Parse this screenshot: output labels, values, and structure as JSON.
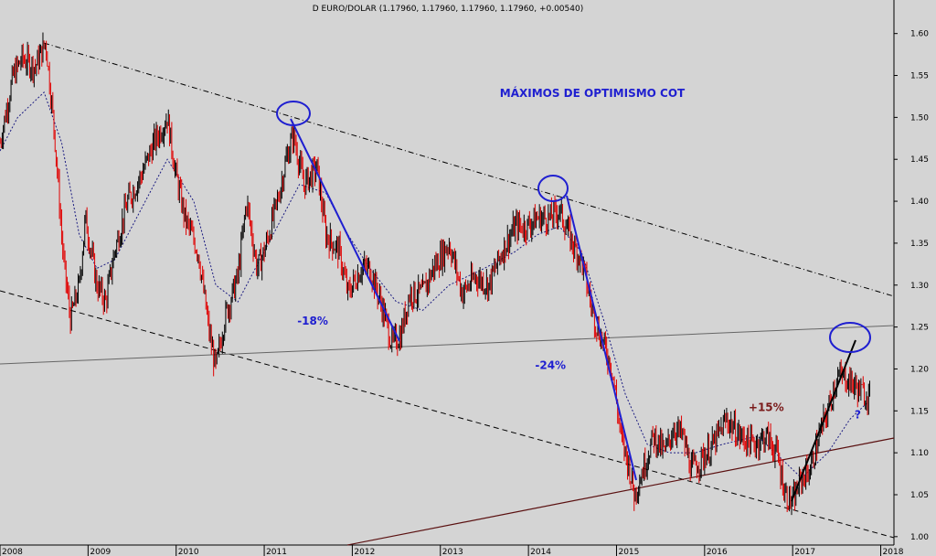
{
  "header": {
    "title": "D EURO/DOLAR (1.17960, 1.17960, 1.17960, 1.17960, +0.00540)"
  },
  "chart_data": {
    "type": "bar",
    "title": "MÁXIMOS DE OPTIMISMO COT",
    "ylim": [
      0.99,
      1.64
    ],
    "y_ticks": [
      "1.60",
      "1.55",
      "1.50",
      "1.45",
      "1.40",
      "1.35",
      "1.30",
      "1.25",
      "1.20",
      "1.15",
      "1.10",
      "1.05",
      "1.00"
    ],
    "x_range": [
      2008.0,
      2018.15
    ],
    "x_ticks": [
      {
        "label": "2008",
        "x": 2008.0
      },
      {
        "label": "2009",
        "x": 2009.0
      },
      {
        "label": "2010",
        "x": 2010.0
      },
      {
        "label": "2011",
        "x": 2011.0
      },
      {
        "label": "2012",
        "x": 2012.0
      },
      {
        "label": "2013",
        "x": 2013.0
      },
      {
        "label": "2014",
        "x": 2014.0
      },
      {
        "label": "2015",
        "x": 2015.0
      },
      {
        "label": "2016",
        "x": 2016.0
      },
      {
        "label": "2017",
        "x": 2017.0
      },
      {
        "label": "2018",
        "x": 2018.0
      }
    ],
    "price_path": [
      [
        2008.0,
        1.47
      ],
      [
        2008.15,
        1.55
      ],
      [
        2008.25,
        1.57
      ],
      [
        2008.4,
        1.56
      ],
      [
        2008.52,
        1.59
      ],
      [
        2008.62,
        1.48
      ],
      [
        2008.72,
        1.33
      ],
      [
        2008.8,
        1.26
      ],
      [
        2008.9,
        1.3
      ],
      [
        2008.97,
        1.38
      ],
      [
        2009.1,
        1.3
      ],
      [
        2009.2,
        1.28
      ],
      [
        2009.3,
        1.34
      ],
      [
        2009.45,
        1.4
      ],
      [
        2009.6,
        1.43
      ],
      [
        2009.75,
        1.47
      ],
      [
        2009.9,
        1.5
      ],
      [
        2010.0,
        1.43
      ],
      [
        2010.1,
        1.38
      ],
      [
        2010.25,
        1.34
      ],
      [
        2010.38,
        1.24
      ],
      [
        2010.45,
        1.2
      ],
      [
        2010.55,
        1.26
      ],
      [
        2010.7,
        1.31
      ],
      [
        2010.8,
        1.4
      ],
      [
        2010.92,
        1.32
      ],
      [
        2011.0,
        1.34
      ],
      [
        2011.15,
        1.4
      ],
      [
        2011.25,
        1.45
      ],
      [
        2011.33,
        1.48
      ],
      [
        2011.45,
        1.42
      ],
      [
        2011.6,
        1.44
      ],
      [
        2011.7,
        1.36
      ],
      [
        2011.85,
        1.34
      ],
      [
        2011.95,
        1.29
      ],
      [
        2012.1,
        1.32
      ],
      [
        2012.2,
        1.32
      ],
      [
        2012.35,
        1.27
      ],
      [
        2012.45,
        1.23
      ],
      [
        2012.55,
        1.24
      ],
      [
        2012.65,
        1.29
      ],
      [
        2012.8,
        1.29
      ],
      [
        2012.92,
        1.32
      ],
      [
        2013.1,
        1.35
      ],
      [
        2013.25,
        1.29
      ],
      [
        2013.4,
        1.31
      ],
      [
        2013.55,
        1.3
      ],
      [
        2013.7,
        1.34
      ],
      [
        2013.85,
        1.37
      ],
      [
        2013.98,
        1.37
      ],
      [
        2014.1,
        1.38
      ],
      [
        2014.25,
        1.38
      ],
      [
        2014.35,
        1.39
      ],
      [
        2014.5,
        1.35
      ],
      [
        2014.6,
        1.33
      ],
      [
        2014.75,
        1.26
      ],
      [
        2014.85,
        1.23
      ],
      [
        2014.95,
        1.2
      ],
      [
        2015.05,
        1.12
      ],
      [
        2015.15,
        1.08
      ],
      [
        2015.2,
        1.05
      ],
      [
        2015.3,
        1.08
      ],
      [
        2015.42,
        1.12
      ],
      [
        2015.55,
        1.1
      ],
      [
        2015.65,
        1.13
      ],
      [
        2015.75,
        1.12
      ],
      [
        2015.85,
        1.08
      ],
      [
        2015.95,
        1.09
      ],
      [
        2016.1,
        1.11
      ],
      [
        2016.25,
        1.14
      ],
      [
        2016.4,
        1.12
      ],
      [
        2016.55,
        1.11
      ],
      [
        2016.7,
        1.12
      ],
      [
        2016.82,
        1.1
      ],
      [
        2016.92,
        1.05
      ],
      [
        2017.0,
        1.04
      ],
      [
        2017.1,
        1.07
      ],
      [
        2017.2,
        1.08
      ],
      [
        2017.3,
        1.12
      ],
      [
        2017.4,
        1.15
      ],
      [
        2017.5,
        1.19
      ],
      [
        2017.6,
        1.19
      ],
      [
        2017.7,
        1.18
      ],
      [
        2017.8,
        1.17
      ],
      [
        2017.88,
        1.17
      ]
    ],
    "ma_path": [
      [
        2008.0,
        1.46
      ],
      [
        2008.2,
        1.5
      ],
      [
        2008.5,
        1.53
      ],
      [
        2008.7,
        1.47
      ],
      [
        2008.9,
        1.36
      ],
      [
        2009.1,
        1.32
      ],
      [
        2009.3,
        1.33
      ],
      [
        2009.6,
        1.39
      ],
      [
        2009.9,
        1.45
      ],
      [
        2010.2,
        1.4
      ],
      [
        2010.45,
        1.3
      ],
      [
        2010.7,
        1.28
      ],
      [
        2010.95,
        1.33
      ],
      [
        2011.2,
        1.38
      ],
      [
        2011.4,
        1.42
      ],
      [
        2011.7,
        1.41
      ],
      [
        2011.95,
        1.36
      ],
      [
        2012.2,
        1.32
      ],
      [
        2012.5,
        1.28
      ],
      [
        2012.8,
        1.27
      ],
      [
        2013.1,
        1.3
      ],
      [
        2013.5,
        1.32
      ],
      [
        2013.85,
        1.34
      ],
      [
        2014.1,
        1.36
      ],
      [
        2014.35,
        1.37
      ],
      [
        2014.6,
        1.34
      ],
      [
        2014.85,
        1.26
      ],
      [
        2015.1,
        1.17
      ],
      [
        2015.35,
        1.11
      ],
      [
        2015.6,
        1.1
      ],
      [
        2015.9,
        1.1
      ],
      [
        2016.2,
        1.11
      ],
      [
        2016.6,
        1.12
      ],
      [
        2016.9,
        1.09
      ],
      [
        2017.1,
        1.07
      ],
      [
        2017.4,
        1.1
      ],
      [
        2017.65,
        1.14
      ],
      [
        2017.85,
        1.16
      ]
    ],
    "annotations": [
      {
        "text": "-18%",
        "x": 2011.55,
        "y": 1.253
      },
      {
        "text": "-24%",
        "x": 2014.25,
        "y": 1.2
      },
      {
        "text": "+15%",
        "x": 2016.7,
        "y": 1.15
      },
      {
        "text": "?",
        "x": 2017.74,
        "y": 1.141
      }
    ]
  }
}
